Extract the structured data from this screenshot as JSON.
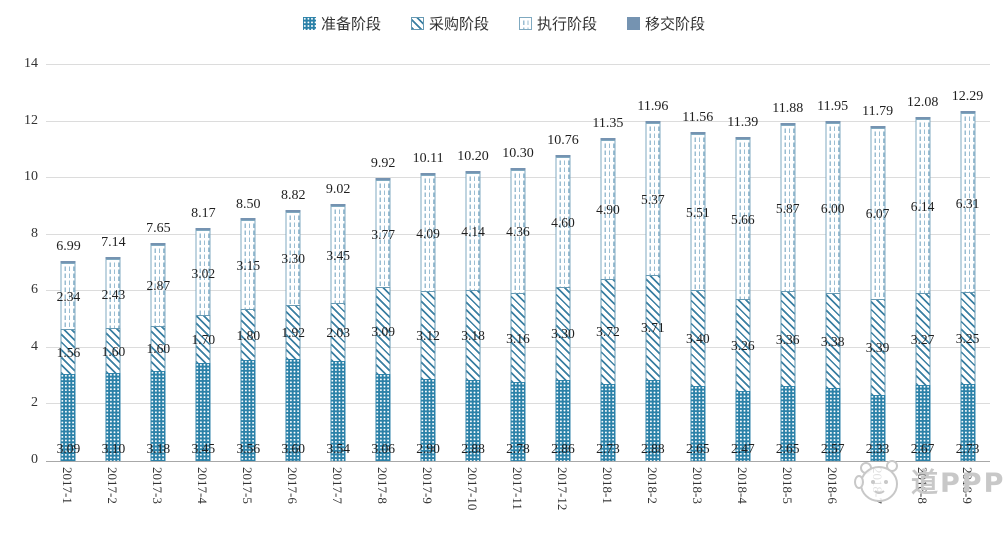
{
  "legend": {
    "items": [
      {
        "label": "准备阶段",
        "pattern": "dots"
      },
      {
        "label": "采购阶段",
        "pattern": "diagonal-hatch"
      },
      {
        "label": "执行阶段",
        "pattern": "dashed-outline"
      },
      {
        "label": "移交阶段",
        "pattern": "solid"
      }
    ]
  },
  "y_axis": {
    "min": 0,
    "max": 14,
    "step": 2,
    "ticks": [
      0,
      2,
      4,
      6,
      8,
      10,
      12,
      14
    ]
  },
  "chart_data": {
    "type": "bar",
    "stacked": true,
    "grid": true,
    "legend_position": "top",
    "ylim": [
      0,
      14
    ],
    "categories": [
      "2017-1",
      "2017-2",
      "2017-3",
      "2017-4",
      "2017-5",
      "2017-6",
      "2017-7",
      "2017-8",
      "2017-9",
      "2017-10",
      "2017-11",
      "2017-12",
      "2018-1",
      "2018-2",
      "2018-3",
      "2018-4",
      "2018-5",
      "2018-6",
      "2018-7",
      "2018-8",
      "2018-9"
    ],
    "series": [
      {
        "name": "准备阶段",
        "values": [
          3.09,
          3.1,
          3.18,
          3.45,
          3.56,
          3.6,
          3.54,
          3.06,
          2.9,
          2.88,
          2.78,
          2.86,
          2.73,
          2.88,
          2.65,
          2.47,
          2.65,
          2.57,
          2.33,
          2.67,
          2.73
        ]
      },
      {
        "name": "采购阶段",
        "values": [
          1.56,
          1.6,
          1.6,
          1.7,
          1.8,
          1.92,
          2.03,
          3.09,
          3.12,
          3.18,
          3.16,
          3.3,
          3.72,
          3.71,
          3.4,
          3.26,
          3.36,
          3.38,
          3.39,
          3.27,
          3.25
        ]
      },
      {
        "name": "执行阶段",
        "values": [
          2.34,
          2.43,
          2.87,
          3.02,
          3.15,
          3.3,
          3.45,
          3.77,
          4.09,
          4.14,
          4.36,
          4.6,
          4.9,
          5.37,
          5.51,
          5.66,
          5.87,
          6.0,
          6.07,
          6.14,
          6.31
        ]
      },
      {
        "name": "移交阶段",
        "values": [
          0,
          0,
          0,
          0,
          0,
          0,
          0,
          0,
          0,
          0,
          0,
          0,
          0,
          0,
          0,
          0,
          0,
          0,
          0,
          0,
          0
        ]
      }
    ],
    "totals": [
      6.99,
      7.14,
      7.65,
      8.17,
      8.5,
      8.82,
      9.02,
      9.92,
      10.11,
      10.2,
      10.3,
      10.76,
      11.35,
      11.96,
      11.56,
      11.39,
      11.88,
      11.95,
      11.79,
      12.08,
      12.29
    ]
  },
  "colors": {
    "preparation_fill": "#2b81a8",
    "procurement_hatch": "#3a7fa2",
    "execution_dash": "#9abdd2",
    "execution_border": "#7fa9c0",
    "handover_fill": "#7593b1",
    "gridline": "#dcdcdc",
    "axis_line": "#a8a8a8",
    "label_text": "#1f1f1f",
    "watermark": "#c8c8c8"
  },
  "watermark": {
    "text": "道PPP",
    "icon": "mascot-face-icon"
  }
}
